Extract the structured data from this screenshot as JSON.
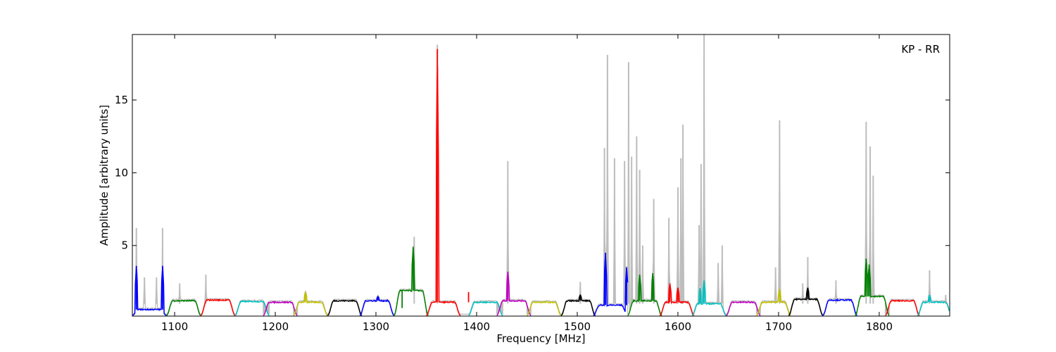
{
  "chart_data": {
    "type": "line",
    "title": "",
    "xlabel": "Frequency [MHz]",
    "ylabel": "Amplitude [arbitrary units]",
    "annotation": "KP - RR",
    "xlim": [
      1058,
      1870
    ],
    "ylim": [
      0.15,
      19.5
    ],
    "x_ticks": [
      1100,
      1200,
      1300,
      1400,
      1500,
      1600,
      1700,
      1800
    ],
    "y_ticks": [
      5,
      10,
      15
    ],
    "grid": false,
    "legend": "none",
    "raw_color": "#bdbdbd",
    "raw_spikes": [
      {
        "x": 1062,
        "y": 6.2
      },
      {
        "x": 1070,
        "y": 2.8
      },
      {
        "x": 1082,
        "y": 2.8
      },
      {
        "x": 1088,
        "y": 6.2
      },
      {
        "x": 1105,
        "y": 2.4
      },
      {
        "x": 1131,
        "y": 3.0
      },
      {
        "x": 1338,
        "y": 5.6
      },
      {
        "x": 1361,
        "y": 18.8
      },
      {
        "x": 1431,
        "y": 10.8
      },
      {
        "x": 1503,
        "y": 2.5
      },
      {
        "x": 1527,
        "y": 11.7
      },
      {
        "x": 1530,
        "y": 18.1
      },
      {
        "x": 1537,
        "y": 11.0
      },
      {
        "x": 1547,
        "y": 10.8
      },
      {
        "x": 1551,
        "y": 17.6
      },
      {
        "x": 1554,
        "y": 11.1
      },
      {
        "x": 1559,
        "y": 12.5
      },
      {
        "x": 1562,
        "y": 10.2
      },
      {
        "x": 1565,
        "y": 5.0
      },
      {
        "x": 1576,
        "y": 8.2
      },
      {
        "x": 1591,
        "y": 6.9
      },
      {
        "x": 1600,
        "y": 9.0
      },
      {
        "x": 1603,
        "y": 11.0
      },
      {
        "x": 1605,
        "y": 13.3
      },
      {
        "x": 1621,
        "y": 6.4
      },
      {
        "x": 1623,
        "y": 10.6
      },
      {
        "x": 1626,
        "y": 19.5
      },
      {
        "x": 1640,
        "y": 3.8
      },
      {
        "x": 1644,
        "y": 5.0
      },
      {
        "x": 1697,
        "y": 3.5
      },
      {
        "x": 1701,
        "y": 13.6
      },
      {
        "x": 1724,
        "y": 2.4
      },
      {
        "x": 1729,
        "y": 4.2
      },
      {
        "x": 1757,
        "y": 2.6
      },
      {
        "x": 1787,
        "y": 13.5
      },
      {
        "x": 1791,
        "y": 11.8
      },
      {
        "x": 1794,
        "y": 9.8
      },
      {
        "x": 1850,
        "y": 3.3
      },
      {
        "x": 1866,
        "y": 1.6
      }
    ],
    "band_width": 34,
    "bands": [
      {
        "start": 1058,
        "level": 0.6,
        "color": "#0000ff",
        "peaks": [
          {
            "x": 1062,
            "y": 3.6
          },
          {
            "x": 1088,
            "y": 3.6
          }
        ]
      },
      {
        "start": 1092,
        "level": 1.2,
        "color": "#008000",
        "peaks": []
      },
      {
        "start": 1126,
        "level": 1.25,
        "color": "#ff0000",
        "peaks": []
      },
      {
        "start": 1160,
        "level": 1.15,
        "color": "#00bfbf",
        "peaks": []
      },
      {
        "start": 1188,
        "level": 1.1,
        "color": "#bf00bf",
        "peaks": []
      },
      {
        "start": 1218,
        "level": 1.1,
        "color": "#bfbf00",
        "peaks": [
          {
            "x": 1230,
            "y": 1.8
          }
        ]
      },
      {
        "start": 1252,
        "level": 1.2,
        "color": "#000000",
        "peaks": []
      },
      {
        "start": 1284,
        "level": 1.2,
        "color": "#0000ff",
        "peaks": [
          {
            "x": 1302,
            "y": 1.5
          }
        ]
      },
      {
        "start": 1318,
        "level": 1.9,
        "color": "#008000",
        "peaks": [
          {
            "x": 1326,
            "y": 0.7
          },
          {
            "x": 1337,
            "y": 4.9
          }
        ]
      },
      {
        "start": 1350,
        "level": 1.1,
        "color": "#ff0000",
        "peaks": [
          {
            "x": 1361,
            "y": 18.5
          },
          {
            "x": 1392,
            "y": 1.8
          }
        ]
      },
      {
        "start": 1392,
        "level": 1.1,
        "color": "#00bfbf",
        "peaks": []
      },
      {
        "start": 1420,
        "level": 1.2,
        "color": "#bf00bf",
        "peaks": [
          {
            "x": 1431,
            "y": 3.2
          }
        ]
      },
      {
        "start": 1450,
        "level": 1.1,
        "color": "#bfbf00",
        "peaks": []
      },
      {
        "start": 1484,
        "level": 1.2,
        "color": "#000000",
        "peaks": [
          {
            "x": 1503,
            "y": 1.6
          }
        ]
      },
      {
        "start": 1516,
        "level": 0.9,
        "color": "#0000ff",
        "peaks": [
          {
            "x": 1528,
            "y": 4.5
          },
          {
            "x": 1549,
            "y": 3.5
          }
        ]
      },
      {
        "start": 1550,
        "level": 1.2,
        "color": "#008000",
        "peaks": [
          {
            "x": 1562,
            "y": 3.0
          },
          {
            "x": 1575,
            "y": 3.1
          }
        ]
      },
      {
        "start": 1582,
        "level": 1.1,
        "color": "#ff0000",
        "peaks": [
          {
            "x": 1592,
            "y": 2.4
          },
          {
            "x": 1600,
            "y": 2.1
          }
        ]
      },
      {
        "start": 1614,
        "level": 1.0,
        "color": "#00bfbf",
        "peaks": [
          {
            "x": 1622,
            "y": 2.1
          },
          {
            "x": 1626,
            "y": 2.6
          }
        ]
      },
      {
        "start": 1648,
        "level": 1.1,
        "color": "#bf00bf",
        "peaks": []
      },
      {
        "start": 1678,
        "level": 1.1,
        "color": "#bfbf00",
        "peaks": [
          {
            "x": 1701,
            "y": 2.0
          }
        ]
      },
      {
        "start": 1710,
        "level": 1.3,
        "color": "#000000",
        "peaks": [
          {
            "x": 1729,
            "y": 2.1
          }
        ]
      },
      {
        "start": 1744,
        "level": 1.25,
        "color": "#0000ff",
        "peaks": []
      },
      {
        "start": 1776,
        "level": 1.5,
        "color": "#008000",
        "peaks": [
          {
            "x": 1787,
            "y": 4.1
          },
          {
            "x": 1790,
            "y": 3.7
          }
        ]
      },
      {
        "start": 1806,
        "level": 1.2,
        "color": "#ff0000",
        "peaks": []
      },
      {
        "start": 1838,
        "level": 1.1,
        "color": "#00bfbf",
        "peaks": [
          {
            "x": 1850,
            "y": 1.6
          }
        ]
      }
    ]
  }
}
